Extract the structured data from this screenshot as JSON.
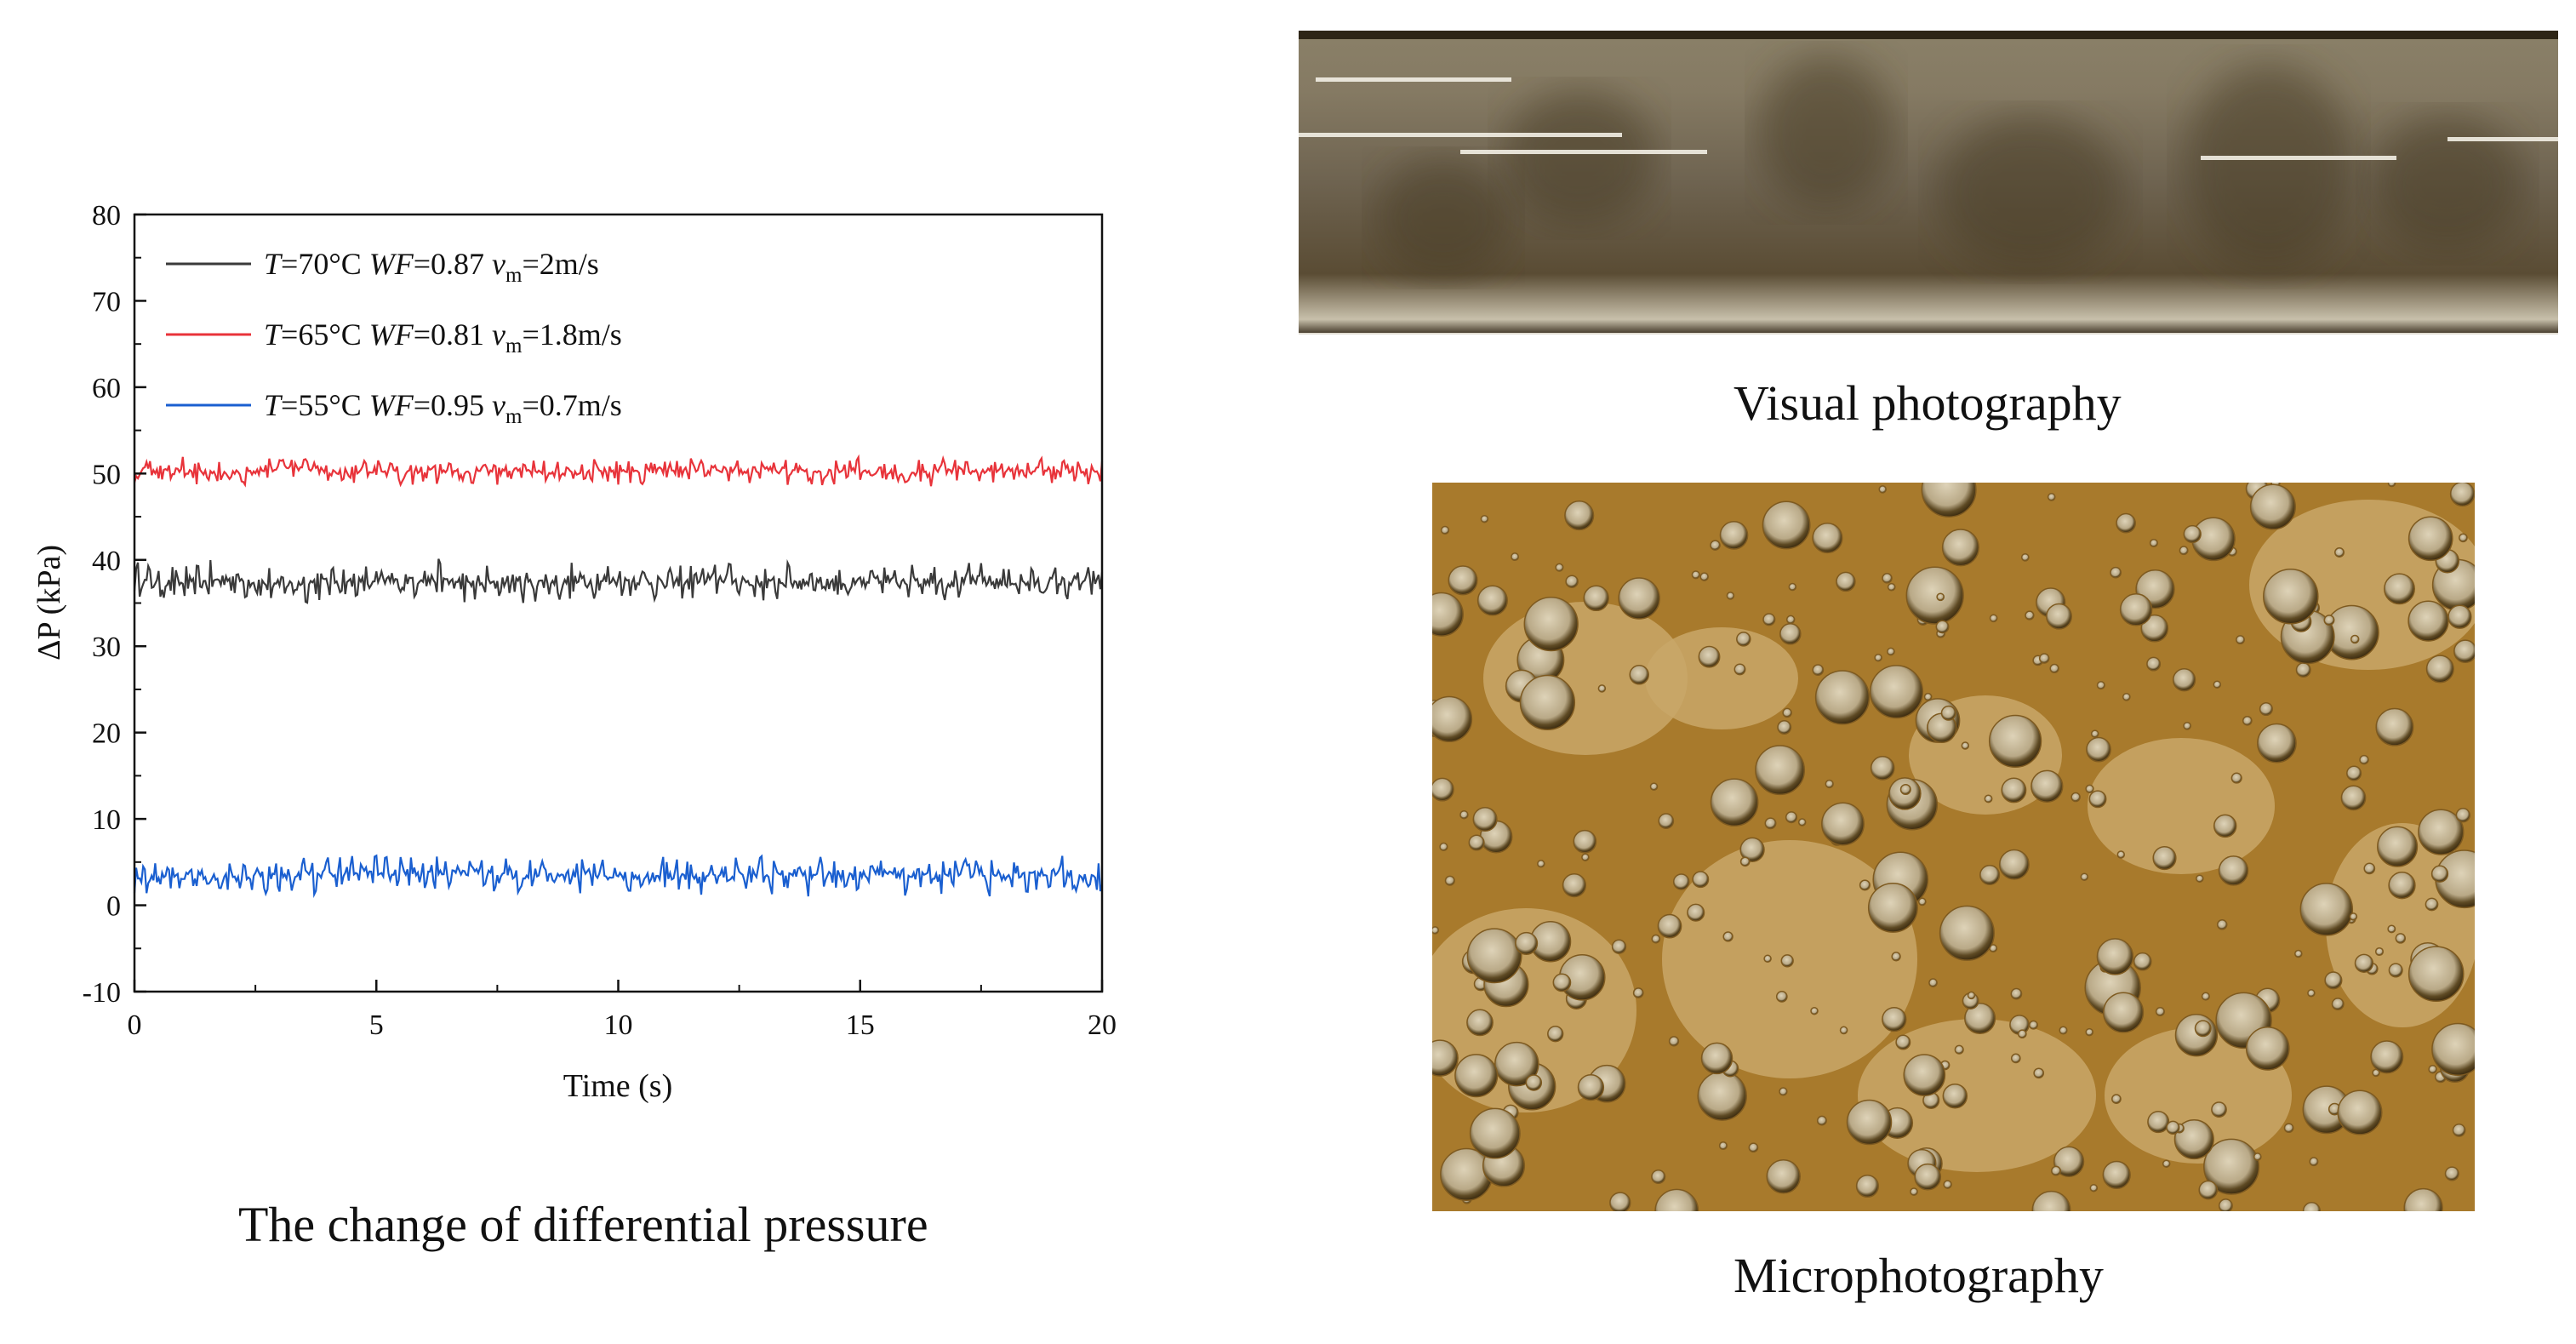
{
  "chart_data": {
    "type": "line",
    "title": "",
    "caption": "The change of differential pressure",
    "xlabel": "Time (s)",
    "ylabel": "ΔP (kPa)",
    "xlim": [
      0,
      20
    ],
    "ylim": [
      -10,
      80
    ],
    "xticks": [
      "0",
      "5",
      "10",
      "15",
      "20"
    ],
    "yticks": [
      "-10",
      "0",
      "10",
      "20",
      "30",
      "40",
      "50",
      "60",
      "70",
      "80"
    ],
    "grid": false,
    "legend_position": "top-left",
    "series": [
      {
        "legend": {
          "T": "T",
          "t": "=70°C ",
          "WF": "WF",
          "wf": "=0.87 ",
          "v": "v",
          "sub": "m",
          "vv": "=2m/s"
        },
        "color": "#3a3a3a",
        "x": [
          0,
          1,
          2,
          3,
          4,
          5,
          6,
          7,
          8,
          9,
          10,
          11,
          12,
          13,
          14,
          15,
          16,
          17,
          18,
          19,
          20
        ],
        "values": [
          37.5,
          37.2,
          37.8,
          37.0,
          37.6,
          37.3,
          37.9,
          37.1,
          37.5,
          37.4,
          37.7,
          37.2,
          37.8,
          37.3,
          37.6,
          37.1,
          37.9,
          37.4,
          37.5,
          37.2,
          37.6
        ],
        "amplitude": 2.5
      },
      {
        "legend": {
          "T": "T",
          "t": "=65°C ",
          "WF": "WF",
          "wf": "=0.81 ",
          "v": "v",
          "sub": "m",
          "vv": "=1.8m/s"
        },
        "color": "#e8333a",
        "x": [
          0,
          1,
          2,
          3,
          4,
          5,
          6,
          7,
          8,
          9,
          10,
          11,
          12,
          13,
          14,
          15,
          16,
          17,
          18,
          19,
          20
        ],
        "values": [
          50.2,
          50.5,
          50.0,
          50.6,
          50.3,
          50.1,
          50.4,
          50.2,
          50.5,
          50.0,
          50.3,
          50.6,
          50.1,
          50.4,
          50.2,
          50.5,
          50.0,
          50.3,
          50.4,
          50.2,
          50.3
        ],
        "amplitude": 1.7
      },
      {
        "legend": {
          "T": "T",
          "t": "=55°C ",
          "WF": "WF",
          "wf": "=0.95 ",
          "v": "v",
          "sub": "m",
          "vv": "=0.7m/s"
        },
        "color": "#1a5fd0",
        "x": [
          0,
          1,
          2,
          3,
          4,
          5,
          6,
          7,
          8,
          9,
          10,
          11,
          12,
          13,
          14,
          15,
          16,
          17,
          18,
          19,
          20
        ],
        "values": [
          3.2,
          3.6,
          3.0,
          3.5,
          3.4,
          3.8,
          3.6,
          3.9,
          3.3,
          3.7,
          3.2,
          3.5,
          3.1,
          3.6,
          3.3,
          3.7,
          3.4,
          3.6,
          3.2,
          3.8,
          3.4
        ],
        "amplitude": 2.4
      }
    ]
  },
  "photos": {
    "visual_caption": "Visual photography",
    "micro_caption": "Microphotography",
    "visual_colors": [
      "#6e6350",
      "#5a4c34",
      "#857a63",
      "#4a3d28"
    ],
    "micro_colors": [
      "#a87a2c",
      "#c9a768",
      "#7e5a20",
      "#d9c9a0"
    ]
  }
}
